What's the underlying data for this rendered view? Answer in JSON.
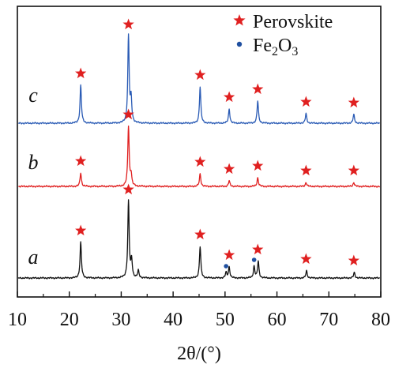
{
  "chart_data": {
    "type": "line",
    "xlabel": "2θ/(°)",
    "xlim": [
      10,
      80
    ],
    "xticks": [
      "10",
      "20",
      "30",
      "40",
      "50",
      "60",
      "70",
      "80"
    ],
    "grid": false,
    "legend": {
      "position": "top-right",
      "entries": [
        {
          "label": "Perovskite",
          "marker": "star",
          "color": "#e02020"
        },
        {
          "label": "Fe2O3",
          "marker": "dot",
          "color": "#1f4fa0"
        }
      ]
    },
    "series": [
      {
        "name": "c",
        "color": "#2a5bb5",
        "peaks": [
          {
            "x": 22.2,
            "h": 48
          },
          {
            "x": 31.4,
            "h": 110
          },
          {
            "x": 31.9,
            "h": 30
          },
          {
            "x": 45.2,
            "h": 46
          },
          {
            "x": 50.8,
            "h": 18
          },
          {
            "x": 56.3,
            "h": 28
          },
          {
            "x": 65.6,
            "h": 12
          },
          {
            "x": 74.8,
            "h": 11
          }
        ],
        "stars": [
          22.2,
          31.4,
          45.2,
          50.8,
          56.3,
          65.6,
          74.8
        ],
        "dots": []
      },
      {
        "name": "b",
        "color": "#e02020",
        "peaks": [
          {
            "x": 22.2,
            "h": 17
          },
          {
            "x": 31.4,
            "h": 76
          },
          {
            "x": 31.9,
            "h": 14
          },
          {
            "x": 45.2,
            "h": 16
          },
          {
            "x": 50.8,
            "h": 7
          },
          {
            "x": 56.3,
            "h": 11
          },
          {
            "x": 65.6,
            "h": 5
          },
          {
            "x": 74.8,
            "h": 5
          }
        ],
        "stars": [
          22.2,
          31.4,
          45.2,
          50.8,
          56.3,
          65.6,
          74.8
        ],
        "dots": []
      },
      {
        "name": "a",
        "color": "#111111",
        "peaks": [
          {
            "x": 22.2,
            "h": 45
          },
          {
            "x": 31.4,
            "h": 97
          },
          {
            "x": 32.0,
            "h": 22
          },
          {
            "x": 33.3,
            "h": 9
          },
          {
            "x": 45.2,
            "h": 40
          },
          {
            "x": 50.2,
            "h": 7
          },
          {
            "x": 50.8,
            "h": 14
          },
          {
            "x": 55.6,
            "h": 15
          },
          {
            "x": 56.4,
            "h": 21
          },
          {
            "x": 65.7,
            "h": 9
          },
          {
            "x": 74.9,
            "h": 7
          }
        ],
        "stars": [
          22.2,
          31.4,
          45.2,
          50.8,
          56.3,
          65.6,
          74.8
        ],
        "dots": [
          50.2,
          55.6
        ]
      }
    ]
  }
}
